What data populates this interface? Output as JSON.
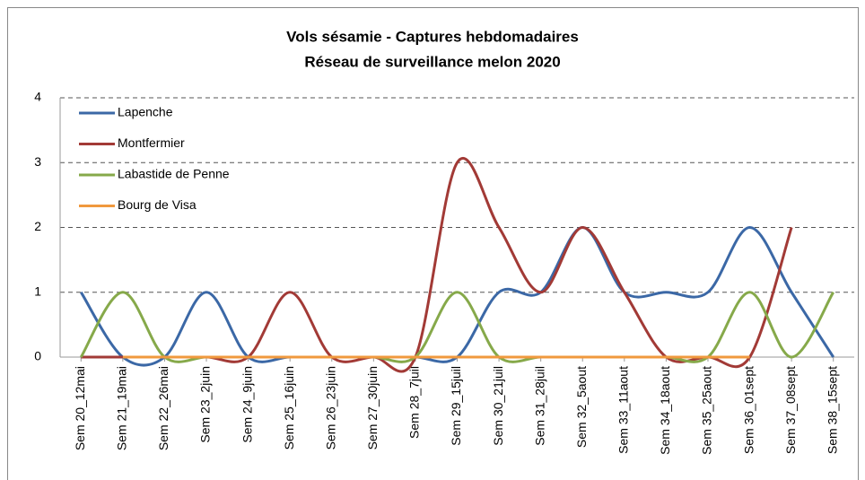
{
  "chart_data": {
    "type": "line",
    "title": "Vols sésamie - Captures hebdomadaires",
    "subtitle": "Réseau de surveillance melon 2020",
    "categories": [
      "Sem 20_12mai",
      "Sem 21_19mai",
      "Sem 22_26mai",
      "Sem 23_2juin",
      "Sem 24_9juin",
      "Sem 25_16juin",
      "Sem 26_23juin",
      "Sem 27_30juin",
      "Sem 28_7juil",
      "Sem 29_15juil",
      "Sem 30_21juil",
      "Sem 31_28juil",
      "Sem 32_5aout",
      "Sem 33_11aout",
      "Sem 34_18aout",
      "Sem 35_25aout",
      "Sem 36_01sept",
      "Sem 37_08sept",
      "Sem 38_15sept"
    ],
    "series": [
      {
        "name": "Lapenche",
        "color": "#3b68a6",
        "values": [
          1,
          0,
          0,
          1,
          0,
          0,
          0,
          0,
          0,
          0,
          1,
          1,
          2,
          1,
          1,
          1,
          2,
          1,
          0
        ]
      },
      {
        "name": "Montfermier",
        "color": "#a23a36",
        "values": [
          0,
          0,
          0,
          0,
          0,
          1,
          0,
          0,
          0,
          3,
          2,
          1,
          2,
          1,
          0,
          0,
          0,
          2,
          null
        ]
      },
      {
        "name": "Labastide de Penne",
        "color": "#86a94a",
        "values": [
          0,
          1,
          0,
          0,
          0,
          0,
          0,
          0,
          0,
          1,
          0,
          0,
          0,
          0,
          0,
          0,
          1,
          0,
          1
        ]
      },
      {
        "name": "Bourg de Visa",
        "color": "#f0993e",
        "values": [
          null,
          0,
          0,
          0,
          0,
          0,
          0,
          0,
          0,
          0,
          0,
          0,
          0,
          0,
          0,
          0,
          0,
          null,
          null
        ]
      }
    ],
    "ylim": [
      0,
      4
    ],
    "yticks": [
      0,
      1,
      2,
      3,
      4
    ],
    "grid": true,
    "smooth": true,
    "legend": "upper left"
  }
}
